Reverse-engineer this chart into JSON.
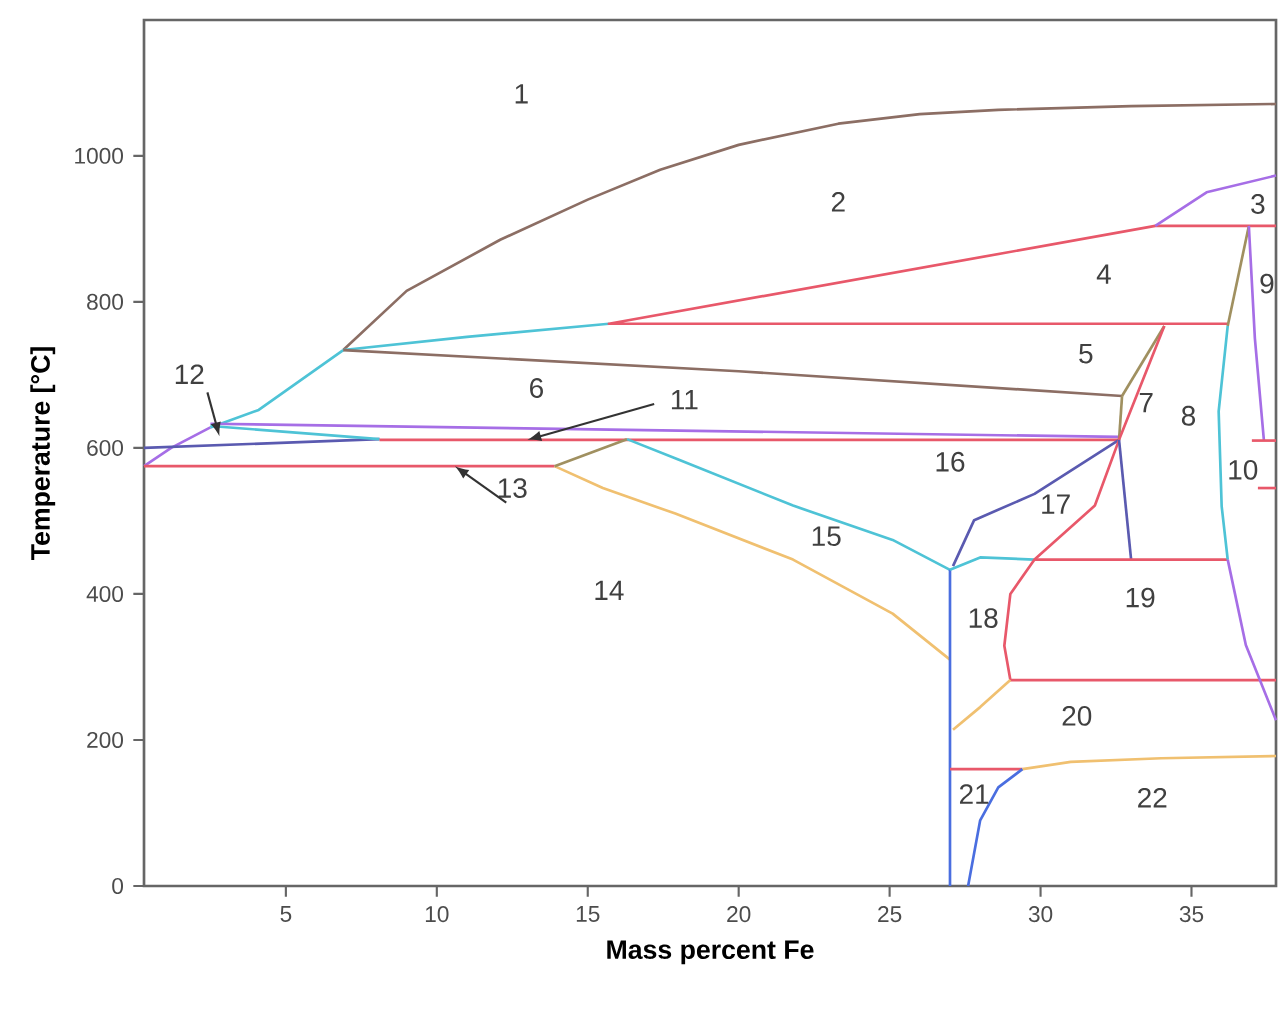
{
  "chart_data": {
    "type": "line",
    "xlabel": "Mass percent Fe",
    "ylabel": "Temperature [°C]",
    "xlim": [
      0.3,
      37.8
    ],
    "ylim": [
      0,
      1186
    ],
    "xticks": [
      5,
      10,
      15,
      20,
      25,
      30,
      35
    ],
    "yticks": [
      0,
      200,
      400,
      600,
      800,
      1000
    ],
    "marker": "none",
    "line_style": "solid",
    "series": [
      {
        "color": "#8c6e64",
        "x": [
          6.9,
          9.0,
          12.1,
          15.0,
          17.4,
          20.0,
          23.3,
          26.0,
          28.6,
          33.0,
          37.8
        ],
        "values": [
          734,
          815,
          885,
          940,
          981,
          1015,
          1044,
          1057,
          1063,
          1068,
          1071
        ]
      },
      {
        "color": "#a66ee6",
        "x": [
          0.3,
          1.2,
          2.5
        ],
        "values": [
          575,
          600,
          628
        ]
      },
      {
        "color": "#4ec3d6",
        "x": [
          2.5,
          4.1,
          5.5,
          6.9
        ],
        "values": [
          628,
          652,
          693,
          734
        ]
      },
      {
        "color": "#4ec3d6",
        "x": [
          6.9,
          11.0,
          15.7
        ],
        "values": [
          734,
          752,
          770
        ]
      },
      {
        "color": "#e8586a",
        "x": [
          37.8,
          33.8,
          15.7,
          36.2
        ],
        "values": [
          904,
          904,
          770,
          770
        ]
      },
      {
        "color": "#a66ee6",
        "x": [
          33.8,
          35.5,
          37.8
        ],
        "values": [
          904,
          950,
          973
        ]
      },
      {
        "color": "#8c6e64",
        "x": [
          6.9,
          20.0,
          32.7
        ],
        "values": [
          734,
          705,
          671
        ]
      },
      {
        "color": "#a66ee6",
        "x": [
          2.5,
          32.6
        ],
        "values": [
          633,
          615
        ]
      },
      {
        "color": "#5a5ab0",
        "x": [
          0.3,
          8.1
        ],
        "values": [
          600,
          612
        ]
      },
      {
        "color": "#4ec3d6",
        "x": [
          2.5,
          8.1
        ],
        "values": [
          630,
          612
        ]
      },
      {
        "color": "#e8586a",
        "x": [
          8.1,
          32.6
        ],
        "values": [
          611,
          611
        ]
      },
      {
        "color": "#e8586a",
        "x": [
          0.3,
          13.9
        ],
        "values": [
          575,
          575
        ]
      },
      {
        "color": "#f0c070",
        "x": [
          13.9,
          15.5,
          17.9,
          21.8,
          25.1,
          27.0
        ],
        "values": [
          575,
          545,
          510,
          447,
          373,
          310
        ]
      },
      {
        "color": "#a09060",
        "x": [
          13.9,
          16.3
        ],
        "values": [
          575,
          612
        ]
      },
      {
        "color": "#4ec3d6",
        "x": [
          16.3,
          18.0,
          21.8,
          25.1,
          27.0
        ],
        "values": [
          612,
          584,
          521,
          474,
          433
        ]
      },
      {
        "color": "#4a6ee0",
        "x": [
          27.0,
          27.0
        ],
        "values": [
          0,
          433
        ]
      },
      {
        "color": "#5a5ab0",
        "x": [
          27.1,
          27.8,
          29.8,
          32.6
        ],
        "values": [
          438,
          501,
          537,
          611
        ]
      },
      {
        "color": "#4ec3d6",
        "x": [
          27.0,
          28.0,
          29.8
        ],
        "values": [
          433,
          450,
          447
        ]
      },
      {
        "color": "#a09060",
        "x": [
          32.7,
          32.6
        ],
        "values": [
          671,
          611
        ]
      },
      {
        "color": "#a09060",
        "x": [
          32.7,
          34.1
        ],
        "values": [
          671,
          767
        ]
      },
      {
        "color": "#e8586a",
        "x": [
          34.1,
          32.6,
          31.8,
          29.8,
          29.0,
          28.8,
          29.0,
          37.8
        ],
        "values": [
          767,
          611,
          521,
          447,
          400,
          329,
          282,
          282
        ]
      },
      {
        "color": "#5a5ab0",
        "x": [
          32.6,
          33.0
        ],
        "values": [
          611,
          447
        ]
      },
      {
        "color": "#e8586a",
        "x": [
          29.8,
          36.2
        ],
        "values": [
          447,
          447
        ]
      },
      {
        "color": "#f0c070",
        "x": [
          27.1,
          28.0,
          29.0
        ],
        "values": [
          214,
          245,
          282
        ]
      },
      {
        "color": "#e8586a",
        "x": [
          27.0,
          29.4
        ],
        "values": [
          160,
          160
        ]
      },
      {
        "color": "#f0c070",
        "x": [
          29.4,
          31.0,
          34.0,
          37.8
        ],
        "values": [
          160,
          170,
          175,
          178
        ]
      },
      {
        "color": "#4a6ee0",
        "x": [
          27.6,
          28.0,
          28.6,
          29.4
        ],
        "values": [
          0,
          90,
          135,
          160
        ]
      },
      {
        "color": "#a09060",
        "x": [
          36.9,
          36.2
        ],
        "values": [
          904,
          767
        ]
      },
      {
        "color": "#4ec3d6",
        "x": [
          36.2,
          35.9,
          36.0,
          36.2
        ],
        "values": [
          767,
          650,
          520,
          447
        ]
      },
      {
        "color": "#a66ee6",
        "x": [
          36.9,
          37.1,
          37.4
        ],
        "values": [
          904,
          750,
          610
        ]
      },
      {
        "color": "#a66ee6",
        "x": [
          36.2,
          36.8,
          37.8
        ],
        "values": [
          447,
          330,
          227
        ]
      },
      {
        "color": "#e8586a",
        "x": [
          37.0,
          37.8
        ],
        "values": [
          610,
          610
        ]
      },
      {
        "color": "#e8586a",
        "x": [
          37.2,
          37.8
        ],
        "values": [
          545,
          545
        ]
      }
    ],
    "annotations": [
      "1",
      "2",
      "3",
      "4",
      "5",
      "6",
      "7",
      "8",
      "9",
      "10",
      {
        "text": "11",
        "x": 13.0,
        "y": 611
      },
      {
        "text": "12",
        "x": 2.8,
        "y": 616
      },
      {
        "text": "13",
        "x": 10.6,
        "y": 575
      },
      "14",
      "15",
      "16",
      "17",
      "18",
      "19",
      "20",
      "21",
      "22"
    ]
  }
}
